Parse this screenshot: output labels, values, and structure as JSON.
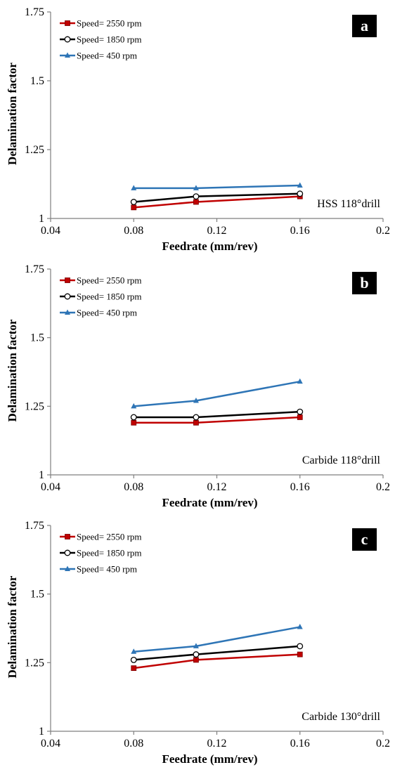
{
  "figure": {
    "panels": [
      "a",
      "b",
      "c"
    ]
  },
  "colors": {
    "series_2550": "#c00000",
    "series_1850": "#000000",
    "series_450": "#2e75b6",
    "axis": "#7f7f7f",
    "label_box": "#000000"
  },
  "chart_data": [
    {
      "type": "line",
      "panel_label": "a",
      "annotation": "HSS 118°drill",
      "xlabel": "Feedrate (mm/rev)",
      "ylabel": "Delamination factor",
      "xlim": [
        0.04,
        0.2
      ],
      "ylim": [
        1,
        1.75
      ],
      "xticks": [
        0.04,
        0.08,
        0.12,
        0.16,
        0.2
      ],
      "xtick_labels": [
        "0.04",
        "0.08",
        "0.12",
        "0.16",
        "0.2"
      ],
      "yticks": [
        1,
        1.25,
        1.5,
        1.75
      ],
      "ytick_labels": [
        "1",
        "1.25",
        "1.5",
        "1.75"
      ],
      "grid": false,
      "legend_position": "top-left",
      "x": [
        0.08,
        0.11,
        0.16
      ],
      "series": [
        {
          "name": "Speed= 2550 rpm",
          "marker": "square",
          "color": "#c00000",
          "values": [
            1.04,
            1.06,
            1.08
          ]
        },
        {
          "name": "Speed= 1850 rpm",
          "marker": "circle",
          "color": "#000000",
          "values": [
            1.06,
            1.08,
            1.09
          ]
        },
        {
          "name": "Speed= 450 rpm",
          "marker": "triangle",
          "color": "#2e75b6",
          "values": [
            1.11,
            1.11,
            1.12
          ]
        }
      ]
    },
    {
      "type": "line",
      "panel_label": "b",
      "annotation": "Carbide 118°drill",
      "xlabel": "Feedrate (mm/rev)",
      "ylabel": "Delamination factor",
      "xlim": [
        0.04,
        0.2
      ],
      "ylim": [
        1,
        1.75
      ],
      "xticks": [
        0.04,
        0.08,
        0.12,
        0.16,
        0.2
      ],
      "xtick_labels": [
        "0.04",
        "0.08",
        "0.12",
        "0.16",
        "0.2"
      ],
      "yticks": [
        1,
        1.25,
        1.5,
        1.75
      ],
      "ytick_labels": [
        "1",
        "1.25",
        "1.5",
        "1.75"
      ],
      "grid": false,
      "legend_position": "top-left",
      "x": [
        0.08,
        0.11,
        0.16
      ],
      "series": [
        {
          "name": "Speed= 2550 rpm",
          "marker": "square",
          "color": "#c00000",
          "values": [
            1.19,
            1.19,
            1.21
          ]
        },
        {
          "name": "Speed= 1850 rpm",
          "marker": "circle",
          "color": "#000000",
          "values": [
            1.21,
            1.21,
            1.23
          ]
        },
        {
          "name": "Speed= 450 rpm",
          "marker": "triangle",
          "color": "#2e75b6",
          "values": [
            1.25,
            1.27,
            1.34
          ]
        }
      ]
    },
    {
      "type": "line",
      "panel_label": "c",
      "annotation": "Carbide 130°drill",
      "xlabel": "Feedrate (mm/rev)",
      "ylabel": "Delamination factor",
      "xlim": [
        0.04,
        0.2
      ],
      "ylim": [
        1,
        1.75
      ],
      "xticks": [
        0.04,
        0.08,
        0.12,
        0.16,
        0.2
      ],
      "xtick_labels": [
        "0.04",
        "0.08",
        "0.12",
        "0.16",
        "0.2"
      ],
      "yticks": [
        1,
        1.25,
        1.5,
        1.75
      ],
      "ytick_labels": [
        "1",
        "1.25",
        "1.5",
        "1.75"
      ],
      "grid": false,
      "legend_position": "top-left",
      "x": [
        0.08,
        0.11,
        0.16
      ],
      "series": [
        {
          "name": "Speed= 2550 rpm",
          "marker": "square",
          "color": "#c00000",
          "values": [
            1.23,
            1.26,
            1.28
          ]
        },
        {
          "name": "Speed= 1850 rpm",
          "marker": "circle",
          "color": "#000000",
          "values": [
            1.26,
            1.28,
            1.31
          ]
        },
        {
          "name": "Speed= 450 rpm",
          "marker": "triangle",
          "color": "#2e75b6",
          "values": [
            1.29,
            1.31,
            1.38
          ]
        }
      ]
    }
  ]
}
